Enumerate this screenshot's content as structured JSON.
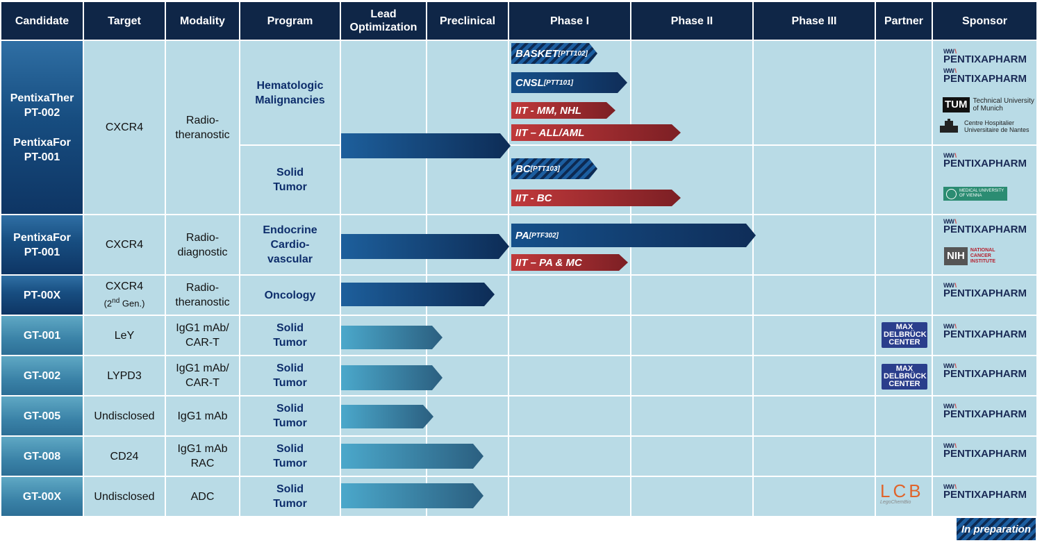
{
  "headers": [
    "Candidate",
    "Target",
    "Modality",
    "Program",
    "Lead\nOptimization",
    "Preclinical",
    "Phase I",
    "Phase II",
    "Phase III",
    "Partner",
    "Sponsor"
  ],
  "rows": {
    "r1": {
      "candidate": [
        "PentixaTher",
        "PT-002",
        "",
        "PentixaFor",
        "PT-001"
      ],
      "target": "CXCR4",
      "modality": [
        "Radio-",
        "theranostic"
      ],
      "program_a": [
        "Hematologic",
        "Malignancies"
      ],
      "program_b": [
        "Solid",
        "Tumor"
      ]
    },
    "r2": {
      "candidate": [
        "PentixaFor",
        "PT-001"
      ],
      "target": "CXCR4",
      "modality": [
        "Radio-",
        "diagnostic"
      ],
      "program": [
        "Endocrine",
        "Cardio-",
        "vascular"
      ]
    },
    "r3": {
      "candidate": "PT-00X",
      "target": "CXCR4",
      "target_sub_pre": "(2",
      "target_sub_sup": "nd",
      "target_sub_post": " Gen.)",
      "modality": [
        "Radio-",
        "theranostic"
      ],
      "program": "Oncology"
    },
    "r4": {
      "candidate": "GT-001",
      "target": "LeY",
      "modality": [
        "IgG1 mAb/",
        "CAR-T"
      ],
      "program": [
        "Solid",
        "Tumor"
      ]
    },
    "r5": {
      "candidate": "GT-002",
      "target": "LYPD3",
      "modality": [
        "IgG1 mAb/",
        "CAR-T"
      ],
      "program": [
        "Solid",
        "Tumor"
      ]
    },
    "r6": {
      "candidate": "GT-005",
      "target": "Undisclosed",
      "modality": "IgG1 mAb",
      "program": [
        "Solid",
        "Tumor"
      ]
    },
    "r7": {
      "candidate": "GT-008",
      "target": "CD24",
      "modality": [
        "IgG1 mAb",
        "RAC"
      ],
      "program": [
        "Solid",
        "Tumor"
      ]
    },
    "r8": {
      "candidate": "GT-00X",
      "target": "Undisclosed",
      "modality": "ADC",
      "program": [
        "Solid",
        "Tumor"
      ]
    }
  },
  "trial_bars": {
    "basket": {
      "label": "BASKET",
      "sup": "[PTT102]",
      "status": "In preparation",
      "phase_end": "Phase I"
    },
    "cnsl": {
      "label": "CNSL ",
      "sup": "[PTT101]",
      "status": "Sponsor trial",
      "phase_end": "Phase I"
    },
    "iit_mm": {
      "label": "IIT  - MM, NHL",
      "status": "IIT",
      "phase_end": "Phase I"
    },
    "iit_all": {
      "label": "IIT – ALL/AML",
      "status": "IIT",
      "phase_end": "Phase II"
    },
    "bc": {
      "label": "BC ",
      "sup": "[PTT103]",
      "status": "In preparation",
      "phase_end": "Phase I"
    },
    "iit_bc": {
      "label": "IIT - BC",
      "status": "IIT",
      "phase_end": "Phase II"
    },
    "pa": {
      "label": "PA ",
      "sup": "[PTF302]",
      "status": "Sponsor trial",
      "phase_end": "Phase III"
    },
    "iit_pa": {
      "label": "IIT – PA & MC",
      "status": "IIT",
      "phase_end": "Phase I"
    }
  },
  "stage_progress": [
    {
      "program": "PT-002/PT-001 Radio-theranostic",
      "reached": "Preclinical completed"
    },
    {
      "program": "PT-001 Radio-diagnostic",
      "reached": "Preclinical completed"
    },
    {
      "program": "PT-00X",
      "reached": "Preclinical"
    },
    {
      "program": "GT-001",
      "reached": "Lead Optimization"
    },
    {
      "program": "GT-002",
      "reached": "Lead Optimization"
    },
    {
      "program": "GT-005",
      "reached": "Lead Optimization"
    },
    {
      "program": "GT-008",
      "reached": "Preclinical"
    },
    {
      "program": "GT-00X",
      "reached": "Preclinical"
    }
  ],
  "logos": {
    "pentixapharm": "PENTIXAPHARM",
    "tum_mark": "TUM",
    "tum": [
      "Technical University",
      "of Munich"
    ],
    "chu": [
      "Centre Hospitalier",
      "Universitaire de Nantes"
    ],
    "meduni": [
      "MEDICAL UNIVERSITY",
      "OF VIENNA"
    ],
    "nih": "NIH",
    "nci": [
      "NATIONAL",
      "CANCER",
      "INSTITUTE"
    ],
    "mdc": [
      "MAX",
      "DELBRÜCK",
      "CENTER"
    ],
    "lcb": "LCB",
    "lcb_sub": "LegoChemBio"
  },
  "legend": {
    "label": "In preparation"
  },
  "colors": {
    "header": "#0f2647",
    "cell": "#b9dbe6",
    "navy_bar": "#0d2c56",
    "red_bar": "#c0393b",
    "teal_bar": "#4ba8cb"
  }
}
